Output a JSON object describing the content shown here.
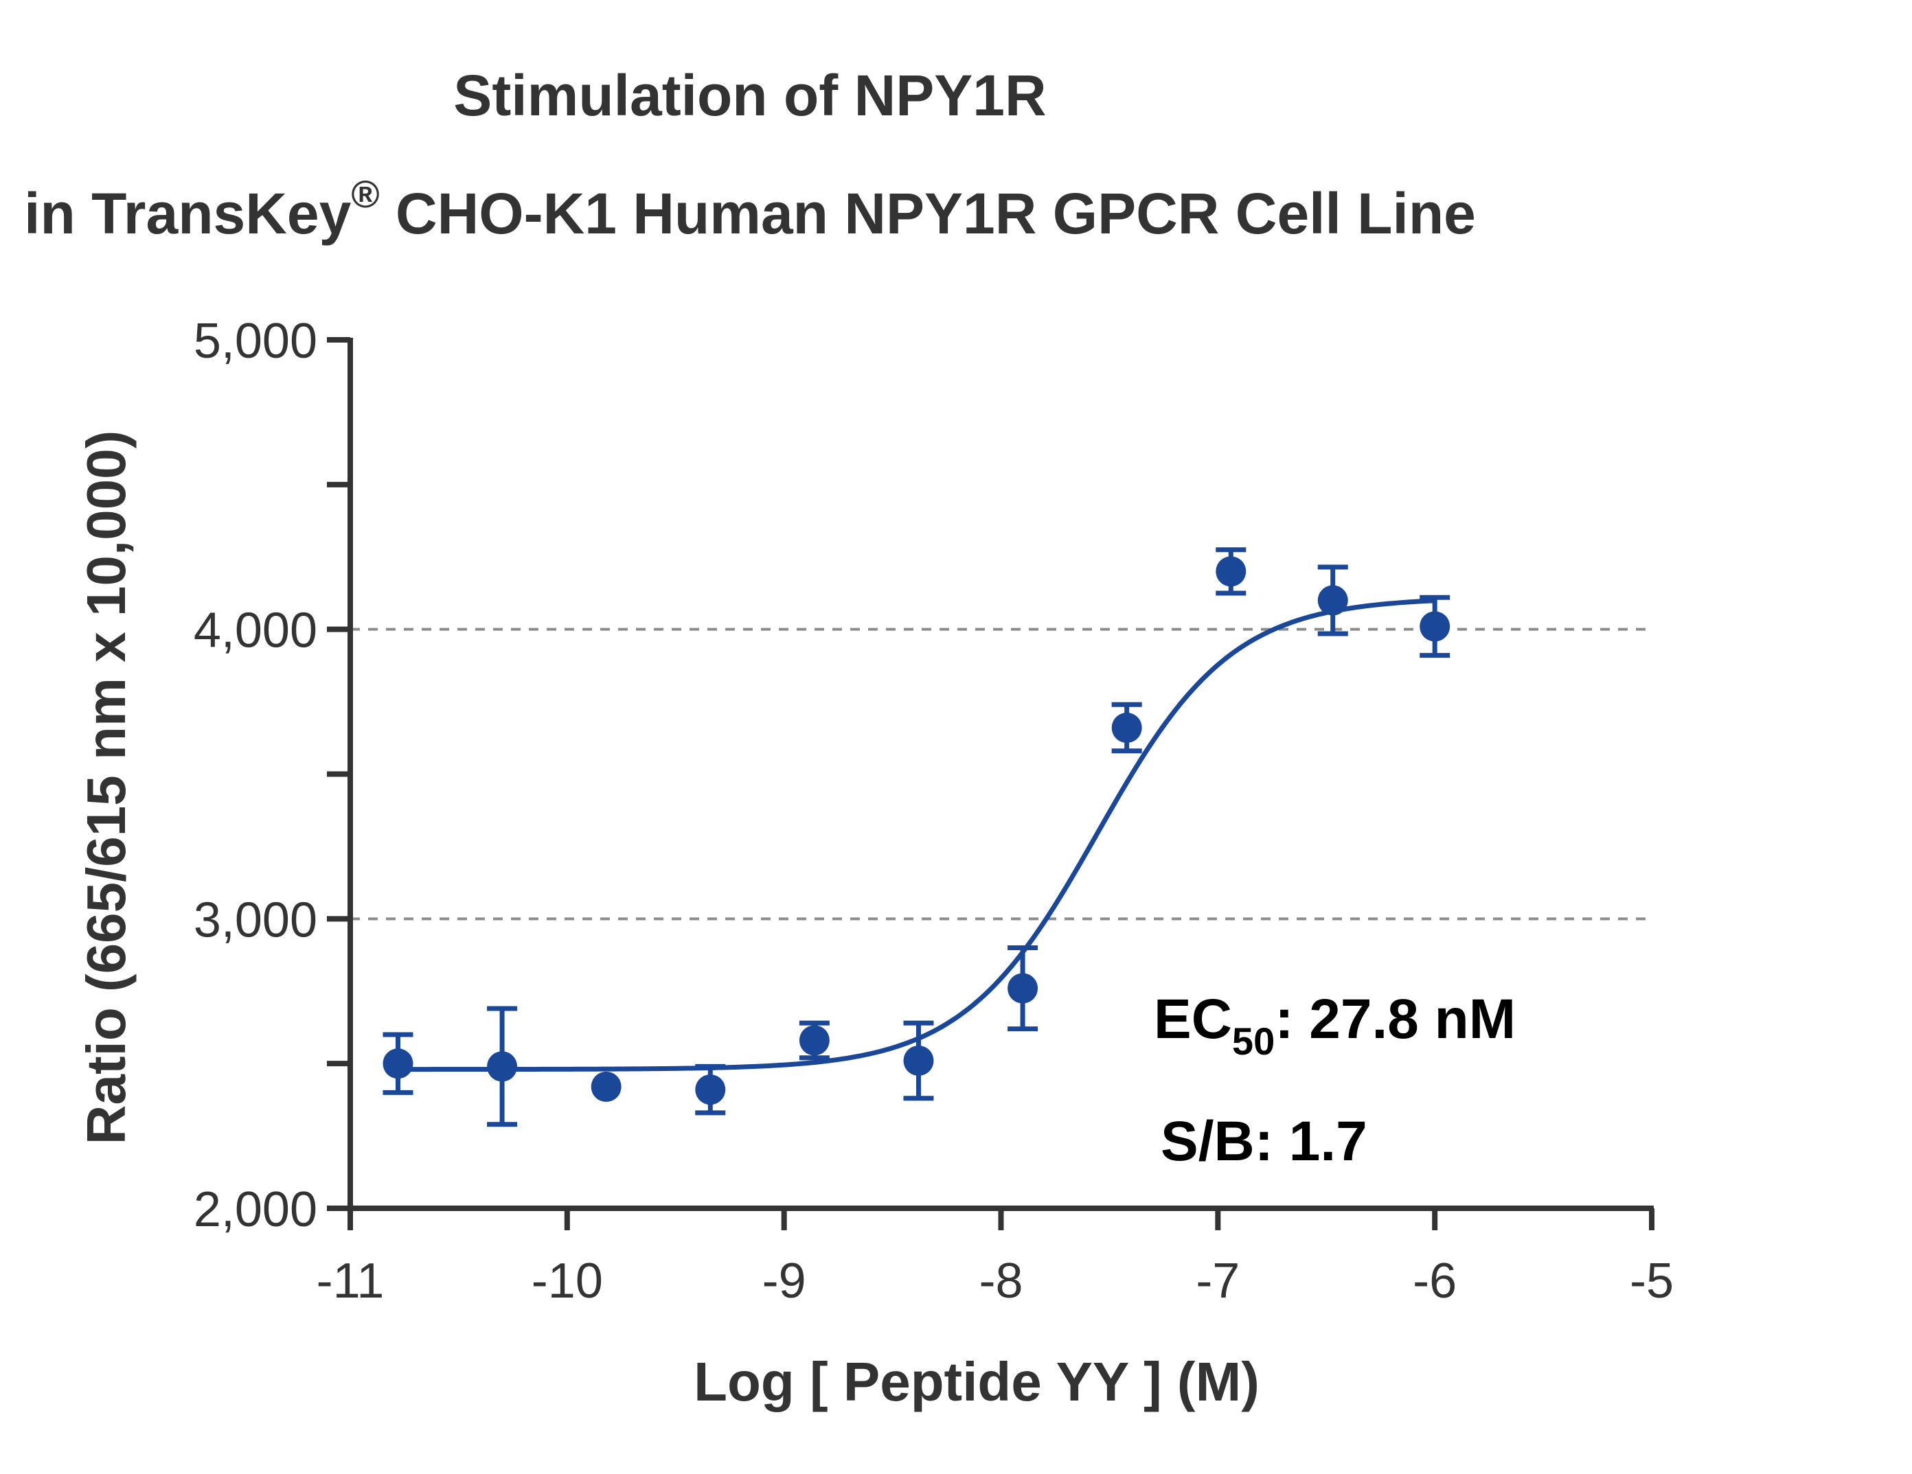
{
  "chart_data": {
    "type": "scatter",
    "title_line1": "Stimulation of NPY1R",
    "title_line2_pre": "in TransKey",
    "title_line2_sup": "®",
    "title_line2_post": " CHO-K1 Human NPY1R GPCR Cell Line",
    "xlabel": "Log [ Peptide YY ]  (M)",
    "ylabel": "Ratio (665/615 nm x 10,000)",
    "xlim": [
      -11,
      -5
    ],
    "ylim": [
      2000,
      5000
    ],
    "x_ticks": [
      -11,
      -10,
      -9,
      -8,
      -7,
      -6,
      -5
    ],
    "x_tick_labels": [
      "-11",
      "-10",
      "-9",
      "-8",
      "-7",
      "-6",
      "-5"
    ],
    "y_ticks_labeled": [
      2000,
      3000,
      4000,
      5000
    ],
    "y_tick_labels": [
      "2,000",
      "3,000",
      "4,000",
      "5,000"
    ],
    "y_ticks_minor": [
      2500,
      3500,
      4500
    ],
    "gridlines_y": [
      3000,
      4000
    ],
    "marker_color": "#1a4797",
    "grid_color": "#8c8c8c",
    "axis_color": "#333333",
    "points": [
      {
        "x": -10.78,
        "y": 2500,
        "err": 100
      },
      {
        "x": -10.3,
        "y": 2490,
        "err": 200
      },
      {
        "x": -9.82,
        "y": 2420,
        "err": 0
      },
      {
        "x": -9.34,
        "y": 2410,
        "err": 80
      },
      {
        "x": -8.86,
        "y": 2580,
        "err": 60
      },
      {
        "x": -8.38,
        "y": 2510,
        "err": 130
      },
      {
        "x": -7.9,
        "y": 2760,
        "err": 140
      },
      {
        "x": -7.42,
        "y": 3660,
        "err": 80
      },
      {
        "x": -6.94,
        "y": 4200,
        "err": 75
      },
      {
        "x": -6.47,
        "y": 4100,
        "err": 115
      },
      {
        "x": -6.0,
        "y": 4010,
        "err": 100
      }
    ],
    "fit": {
      "model": "4PL",
      "bottom": 2480,
      "top": 4110,
      "logEC50": -7.556,
      "hill": 1.4,
      "x_range": [
        -10.78,
        -6.0
      ]
    },
    "annotation_ec50_pre": "EC",
    "annotation_ec50_sub": "50",
    "annotation_ec50_post": ": 27.8 nM",
    "annotation_sb": "S/B: 1.7"
  }
}
